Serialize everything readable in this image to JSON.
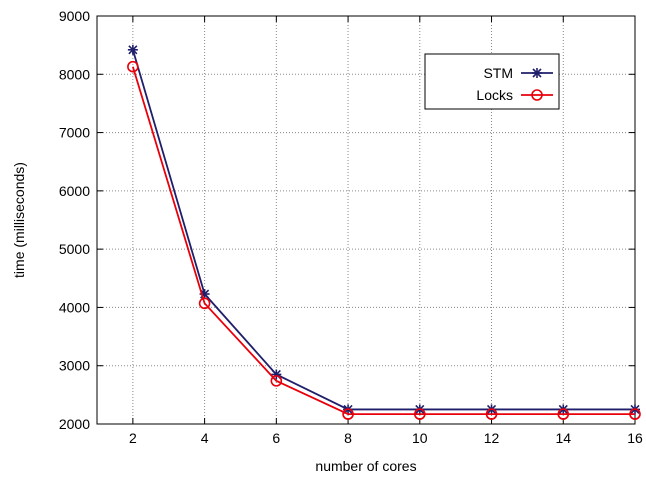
{
  "chart_data": {
    "type": "line",
    "title": "",
    "xlabel": "number of cores",
    "ylabel": "time (milliseconds)",
    "x": [
      2,
      4,
      6,
      8,
      10,
      12,
      14,
      16
    ],
    "xlim": [
      1,
      16
    ],
    "ylim": [
      2000,
      9000
    ],
    "xticks": [
      "2",
      "4",
      "6",
      "8",
      "10",
      "12",
      "14",
      "16"
    ],
    "yticks": [
      "2000",
      "3000",
      "4000",
      "5000",
      "6000",
      "7000",
      "8000",
      "9000"
    ],
    "grid": true,
    "legend_position": "top-right",
    "series": [
      {
        "name": "STM",
        "color": "#1f1f6b",
        "marker": "asterisk",
        "values": [
          8420,
          4230,
          2850,
          2250,
          2250,
          2250,
          2250,
          2250
        ]
      },
      {
        "name": "Locks",
        "color": "#e8000b",
        "marker": "circle",
        "values": [
          8130,
          4070,
          2740,
          2170,
          2170,
          2170,
          2170,
          2170
        ]
      }
    ]
  }
}
